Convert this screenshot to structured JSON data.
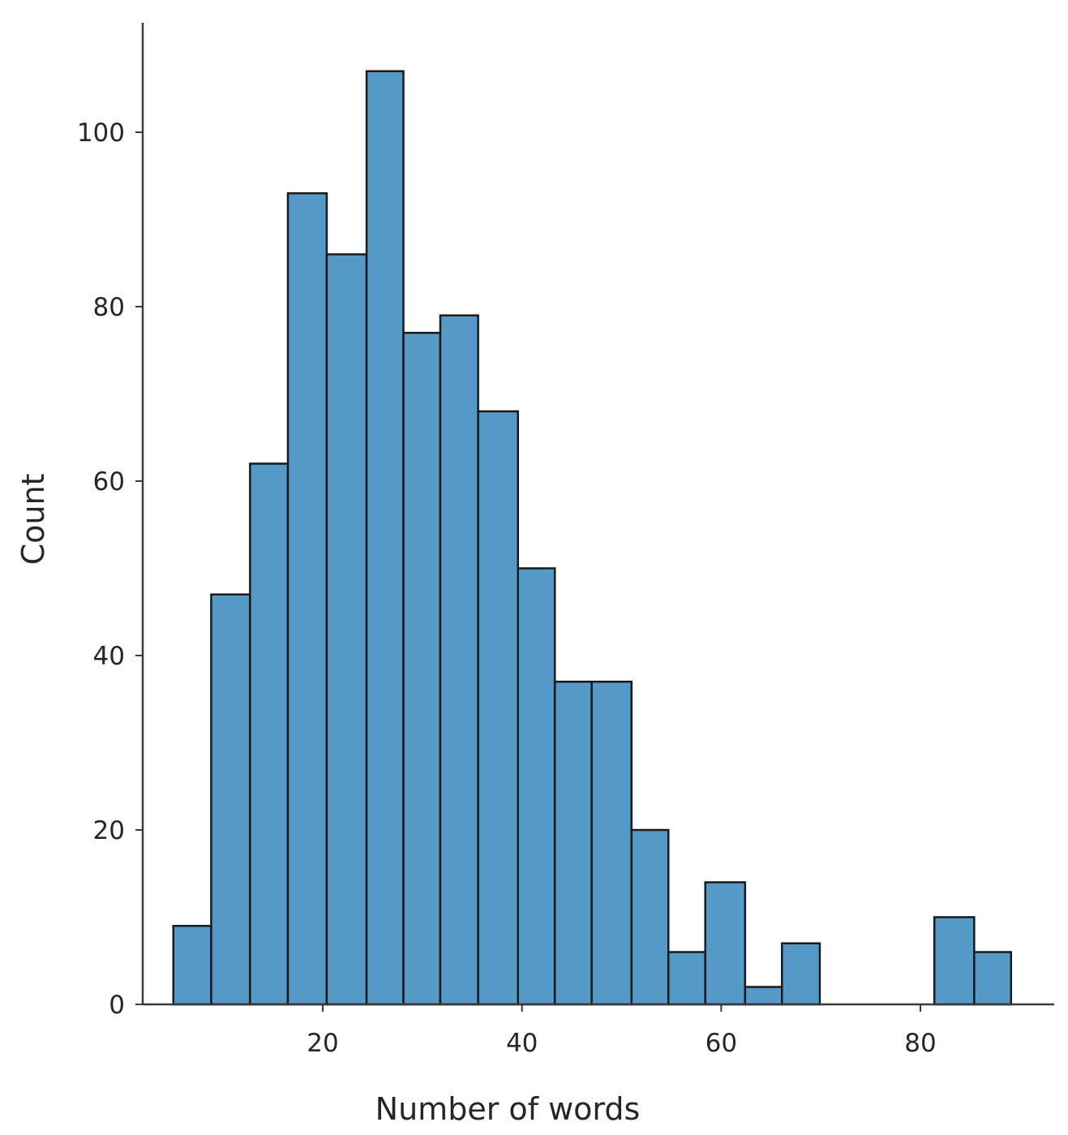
{
  "chart_data": {
    "type": "bar",
    "subtype": "histogram",
    "title": "",
    "xlabel": "Number of words",
    "ylabel": "Count",
    "xlim": [
      2,
      92
    ],
    "ylim": [
      0,
      113
    ],
    "xticks": [
      20,
      40,
      60,
      80
    ],
    "yticks": [
      0,
      20,
      40,
      60,
      80,
      100
    ],
    "grid": false,
    "bar_color": "#5499c7",
    "edge_color": "#1a1a1a",
    "bins": [
      {
        "x0": 5.0,
        "x1": 8.8,
        "count": 9
      },
      {
        "x0": 8.8,
        "x1": 12.7,
        "count": 47
      },
      {
        "x0": 12.7,
        "x1": 16.5,
        "count": 62
      },
      {
        "x0": 16.5,
        "x1": 20.4,
        "count": 93
      },
      {
        "x0": 20.4,
        "x1": 24.4,
        "count": 86
      },
      {
        "x0": 24.4,
        "x1": 28.1,
        "count": 107
      },
      {
        "x0": 28.1,
        "x1": 31.8,
        "count": 77
      },
      {
        "x0": 31.8,
        "x1": 35.6,
        "count": 79
      },
      {
        "x0": 35.6,
        "x1": 39.6,
        "count": 68
      },
      {
        "x0": 39.6,
        "x1": 43.3,
        "count": 50
      },
      {
        "x0": 43.3,
        "x1": 47.0,
        "count": 37
      },
      {
        "x0": 47.0,
        "x1": 51.0,
        "count": 37
      },
      {
        "x0": 51.0,
        "x1": 54.7,
        "count": 20
      },
      {
        "x0": 54.7,
        "x1": 58.4,
        "count": 6
      },
      {
        "x0": 58.4,
        "x1": 62.4,
        "count": 14
      },
      {
        "x0": 62.4,
        "x1": 66.1,
        "count": 2
      },
      {
        "x0": 66.1,
        "x1": 69.9,
        "count": 7
      },
      {
        "x0": 81.4,
        "x1": 85.4,
        "count": 10
      },
      {
        "x0": 85.4,
        "x1": 89.1,
        "count": 6
      }
    ]
  }
}
